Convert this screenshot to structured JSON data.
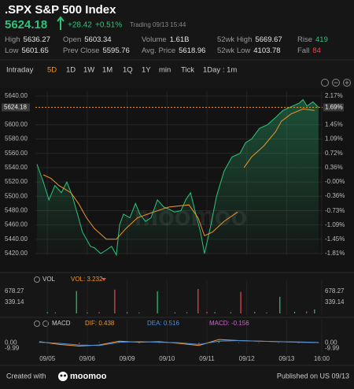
{
  "header": {
    "title": ".SPX S&P 500 Index",
    "price": "5624.18",
    "change": "+28.42",
    "change_pct": "+0.51%",
    "status": "Trading 09/13 15:44"
  },
  "stats": [
    [
      {
        "label": "High",
        "value": "5636.27"
      },
      {
        "label": "Open",
        "value": "5603.34"
      },
      {
        "label": "Volume",
        "value": "1.61B"
      },
      {
        "label": "52wk High",
        "value": "5669.67"
      },
      {
        "label": "Rise",
        "value": "419",
        "color": "#2fc37a"
      }
    ],
    [
      {
        "label": "Low",
        "value": "5601.65"
      },
      {
        "label": "Prev Close",
        "value": "5595.76"
      },
      {
        "label": "Avg. Price",
        "value": "5618.96"
      },
      {
        "label": "52wk Low",
        "value": "4103.78"
      },
      {
        "label": "Fall",
        "value": "84",
        "color": "#f04848"
      }
    ]
  ],
  "tabs": [
    "Intraday",
    "5D",
    "1D",
    "1W",
    "1M",
    "1Q",
    "1Y",
    "min",
    "Tick",
    "1Day : 1m"
  ],
  "selected_tab": 1,
  "chart_data": [
    {
      "type": "line",
      "xlim": [
        -0.3,
        6.9
      ],
      "ylim": [
        5420,
        5640
      ],
      "yticks": [
        {
          "value": 5640,
          "label": "5640.00"
        },
        {
          "value": 5600,
          "label": "5600.00"
        },
        {
          "value": 5580,
          "label": "5580.00"
        },
        {
          "value": 5560,
          "label": "5560.00"
        },
        {
          "value": 5540,
          "label": "5540.00"
        },
        {
          "value": 5520,
          "label": "5520.00"
        },
        {
          "value": 5500,
          "label": "5500.00"
        },
        {
          "value": 5480,
          "label": "5480.00"
        },
        {
          "value": 5460,
          "label": "5460.00"
        },
        {
          "value": 5440,
          "label": "5440.00"
        },
        {
          "value": 5420,
          "label": "5420.00"
        }
      ],
      "y2lim": [
        -1.81,
        2.17
      ],
      "y2ticks": [
        {
          "value": 2.17,
          "label": "2.17%"
        },
        {
          "value": 1.45,
          "label": "1.45%"
        },
        {
          "value": 1.09,
          "label": "1.09%"
        },
        {
          "value": 0.72,
          "label": "0.72%"
        },
        {
          "value": 0.36,
          "label": "0.36%"
        },
        {
          "value": 0,
          "label": "-0.00%"
        },
        {
          "value": -0.36,
          "label": "-0.36%"
        },
        {
          "value": -0.73,
          "label": "-0.73%"
        },
        {
          "value": -1.09,
          "label": "-1.09%"
        },
        {
          "value": -1.45,
          "label": "-1.45%"
        },
        {
          "value": -1.81,
          "label": "-1.81%"
        }
      ],
      "current": {
        "value": 5624.18,
        "label": "5624.18"
      },
      "current_pct": {
        "value": 1.69,
        "label": "1.69%"
      },
      "watermark": "moomoo",
      "grid": true,
      "series": [
        {
          "color": "#2fc37a",
          "area": true,
          "x": [
            -0.26,
            -0.1,
            0.04,
            0.19,
            0.35,
            0.49,
            0.63,
            0.78,
            0.88,
            0.98,
            1.08,
            1.18,
            1.34,
            1.48,
            1.61,
            1.73,
            1.81,
            1.91,
            2.07,
            2.21,
            2.32,
            2.46,
            2.6,
            2.76,
            2.92,
            3.05,
            3.19,
            3.35,
            3.47,
            3.59,
            3.7,
            3.84,
            3.94,
            4.02,
            4.1,
            4.24,
            4.43,
            4.63,
            4.83,
            4.97,
            5.12,
            5.32,
            5.52,
            5.72,
            5.91,
            6.11,
            6.31,
            6.41,
            6.51,
            6.66,
            6.8
          ],
          "values": [
            5545,
            5520,
            5495,
            5515,
            5505,
            5520,
            5500,
            5470,
            5450,
            5440,
            5430,
            5428,
            5420,
            5425,
            5430,
            5418,
            5460,
            5475,
            5470,
            5490,
            5475,
            5465,
            5470,
            5495,
            5485,
            5482,
            5478,
            5480,
            5495,
            5505,
            5480,
            5450,
            5420,
            5440,
            5460,
            5500,
            5535,
            5555,
            5560,
            5575,
            5580,
            5595,
            5600,
            5610,
            5620,
            5625,
            5630,
            5635,
            5626,
            5632,
            5624.18
          ]
        },
        {
          "color": "#f0962a",
          "x": [
            -0.1,
            0.09,
            0.29,
            0.59,
            0.78,
            0.98,
            1.18,
            1.48,
            1.73,
            1.97,
            2.26,
            2.66,
            3.05,
            3.55,
            3.78,
            3.94,
            4.14,
            4.43,
            4.77,
            4.85,
            4.93,
            5.12,
            5.42,
            5.72,
            5.87,
            6.11,
            6.41,
            6.7
          ],
          "values": [
            5530,
            5525,
            5515,
            5505,
            5490,
            5470,
            5455,
            5440,
            5440,
            5455,
            5470,
            5478,
            5485,
            5488,
            5470,
            5445,
            5450,
            5465,
            5478,
            null,
            5540,
            5555,
            5570,
            5590,
            5605,
            5615,
            5622,
            5620
          ]
        }
      ]
    },
    {
      "type": "bar",
      "title": "VOL",
      "label": "VOL: 3.232",
      "xlim": [
        -0.3,
        6.9
      ],
      "ylim": [
        0,
        871
      ],
      "yticks": [
        {
          "value": 678.27,
          "label": "678.27"
        },
        {
          "value": 339.14,
          "label": "339.14"
        }
      ],
      "series": [
        {
          "color": "#2fc37a",
          "x": [
            0.0,
            0.73,
            1.0,
            2.0,
            2.76,
            3.2,
            4.2,
            4.6,
            5.2,
            5.83,
            6.2,
            6.7
          ],
          "values": [
            40,
            690,
            30,
            35,
            680,
            30,
            40,
            35,
            45,
            510,
            50,
            120
          ]
        },
        {
          "color": "#f04848",
          "x": [
            0.2,
            1.3,
            1.69,
            2.3,
            3.5,
            3.78,
            4.0,
            4.85,
            5.5,
            6.5
          ],
          "values": [
            30,
            40,
            730,
            30,
            35,
            750,
            50,
            660,
            30,
            60
          ]
        }
      ]
    },
    {
      "type": "line",
      "title": "MACD",
      "xlim": [
        -0.3,
        6.9
      ],
      "ylim": [
        -18,
        33
      ],
      "yticks": [
        {
          "value": 0,
          "label": "0.00"
        },
        {
          "value": -9.99,
          "label": "-9.99"
        }
      ],
      "xticks": [
        {
          "value": 0,
          "label": "09/05"
        },
        {
          "value": 1,
          "label": "09/06"
        },
        {
          "value": 2,
          "label": "09/09"
        },
        {
          "value": 3,
          "label": "09/10"
        },
        {
          "value": 4,
          "label": "09/11"
        },
        {
          "value": 5,
          "label": "09/12"
        },
        {
          "value": 6,
          "label": "09/13"
        },
        {
          "value": 6.88,
          "label": "16:00"
        }
      ],
      "series": [
        {
          "name": "DIF: 0.438",
          "color": "#f0962a",
          "x": [
            -0.2,
            0.3,
            0.8,
            1.3,
            1.8,
            2.3,
            2.8,
            3.3,
            3.8,
            4.3,
            4.8,
            5.3,
            5.8,
            6.3,
            6.8
          ],
          "values": [
            2,
            -3,
            -6,
            -4,
            3,
            1,
            2,
            -1,
            -5,
            6,
            4,
            3,
            2,
            1,
            0.438
          ]
        },
        {
          "name": "DEA: 0.516",
          "color": "#4a90e2",
          "x": [
            -0.2,
            0.3,
            0.8,
            1.3,
            1.8,
            2.3,
            2.8,
            3.3,
            3.8,
            4.3,
            4.8,
            5.3,
            5.8,
            6.3,
            6.8
          ],
          "values": [
            1,
            -1,
            -4,
            -5,
            1,
            2,
            1,
            0,
            -3,
            3,
            4,
            3,
            2,
            1.5,
            0.516
          ]
        },
        {
          "name": "MACD: -0.156",
          "type": "bar",
          "color": "#d060d0",
          "up_color": "#2fc37a",
          "down_color": "#f04848",
          "x": [
            -0.2,
            0.3,
            0.8,
            1.3,
            1.8,
            2.3,
            2.8,
            3.3,
            3.8,
            4.3,
            4.8,
            5.3,
            5.8,
            6.3,
            6.8
          ],
          "values": [
            1,
            -2,
            -2,
            1,
            2,
            -1,
            1,
            -1,
            -2,
            3,
            0.5,
            -0.5,
            0.4,
            -0.5,
            -0.156
          ]
        }
      ]
    }
  ],
  "footer": {
    "left": "Created with",
    "brand": "moomoo",
    "right": "Published on US 09/13"
  }
}
